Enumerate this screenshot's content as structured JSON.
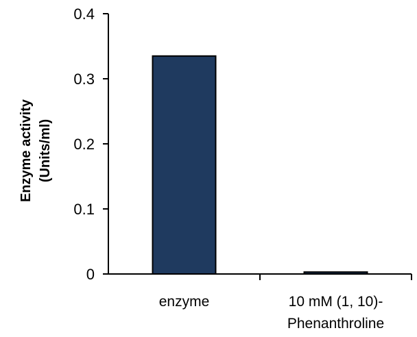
{
  "chart_data": {
    "type": "bar",
    "categories": [
      [
        "enzyme"
      ],
      [
        "10 mM (1, 10)-",
        "Phenanthroline"
      ]
    ],
    "values": [
      0.335,
      0.003
    ],
    "title": "",
    "xlabel": "",
    "ylabel": [
      "Enzyme activity",
      "(Units/ml)"
    ],
    "ylim": [
      0,
      0.4
    ],
    "yticks": [
      0,
      0.1,
      0.2,
      0.3,
      0.4
    ],
    "ytick_labels": [
      "0",
      "0.1",
      "0.2",
      "0.3",
      "0.4"
    ],
    "grid": false,
    "legend": "none",
    "colors": {
      "bar_fill": "#1f3a5f",
      "bar_stroke": "#000000",
      "axis": "#000000"
    }
  }
}
